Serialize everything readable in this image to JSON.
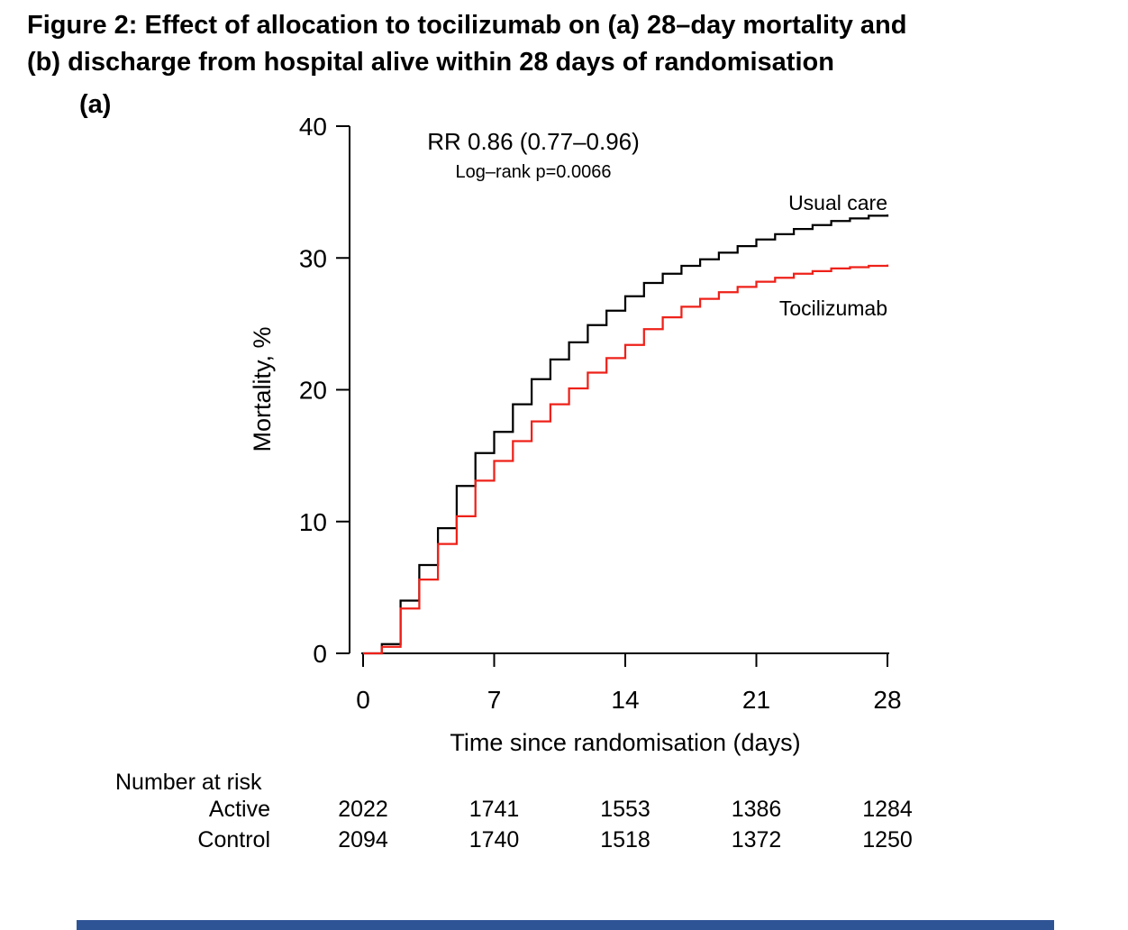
{
  "figure": {
    "title_line1": "Figure 2: Effect of allocation to tocilizumab on (a) 28–day mortality and",
    "title_line2": "(b) discharge from hospital alive within 28 days of randomisation",
    "panel_label": "(a)"
  },
  "chart_data": {
    "type": "line",
    "subtype": "step-cumulative-incidence",
    "xlabel": "Time since randomisation (days)",
    "ylabel": "Mortality, %",
    "xlim": [
      0,
      28
    ],
    "ylim": [
      0,
      40
    ],
    "xticks": [
      0,
      7,
      14,
      21,
      28
    ],
    "yticks": [
      0,
      10,
      20,
      30,
      40
    ],
    "grid": false,
    "annotation": {
      "rr": "RR 0.86 (0.77–0.96)",
      "logrank": "Log–rank p=0.0066"
    },
    "series": [
      {
        "name": "Usual care",
        "color": "#000000",
        "x_days": "integer days 0–28",
        "values": [
          0,
          0.7,
          4.0,
          6.7,
          9.5,
          12.7,
          15.2,
          16.8,
          18.9,
          20.8,
          22.3,
          23.6,
          24.9,
          26.0,
          27.1,
          28.1,
          28.8,
          29.4,
          29.9,
          30.4,
          30.9,
          31.4,
          31.8,
          32.2,
          32.5,
          32.8,
          33.0,
          33.2,
          33.3
        ]
      },
      {
        "name": "Tocilizumab",
        "color": "#ee2119",
        "x_days": "integer days 0–28",
        "values": [
          0,
          0.5,
          3.4,
          5.6,
          8.3,
          10.4,
          13.1,
          14.6,
          16.1,
          17.6,
          18.9,
          20.1,
          21.3,
          22.4,
          23.4,
          24.6,
          25.5,
          26.3,
          26.9,
          27.4,
          27.8,
          28.2,
          28.5,
          28.8,
          29.0,
          29.2,
          29.3,
          29.4,
          29.5
        ]
      }
    ],
    "number_at_risk": {
      "label": "Number at risk",
      "days": [
        0,
        7,
        14,
        21,
        28
      ],
      "rows": [
        {
          "label": "Active",
          "color": "#ee2119",
          "values": [
            "2022",
            "1741",
            "1553",
            "1386",
            "1284"
          ]
        },
        {
          "label": "Control",
          "color": "#000000",
          "values": [
            "2094",
            "1740",
            "1518",
            "1372",
            "1250"
          ]
        }
      ]
    }
  },
  "footer": {
    "bar_color": "#2f5496"
  }
}
